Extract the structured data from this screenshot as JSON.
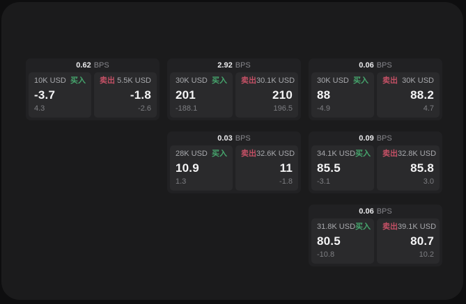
{
  "labels": {
    "bps_unit": "BPS",
    "buy": "买入",
    "sell": "卖出"
  },
  "colors": {
    "buy_green": "#46a56d",
    "sell_red": "#c35065",
    "panel_bg": "#1b1b1c",
    "card_bg": "#212123",
    "tile_bg": "#2a2a2c"
  },
  "cards": [
    {
      "bps": "0.62",
      "buy": {
        "amount": "10K USD",
        "value": "-3.7",
        "change": "4.3"
      },
      "sell": {
        "amount": "5.5K USD",
        "value": "-1.8",
        "change": "-2.6"
      }
    },
    {
      "bps": "2.92",
      "buy": {
        "amount": "30K USD",
        "value": "201",
        "change": "-188.1"
      },
      "sell": {
        "amount": "30.1K USD",
        "value": "210",
        "change": "196.5"
      }
    },
    {
      "bps": "0.06",
      "buy": {
        "amount": "30K USD",
        "value": "88",
        "change": "-4.9"
      },
      "sell": {
        "amount": "30K USD",
        "value": "88.2",
        "change": "4.7"
      }
    },
    {
      "bps": "0.03",
      "buy": {
        "amount": "28K USD",
        "value": "10.9",
        "change": "1.3"
      },
      "sell": {
        "amount": "32.6K USD",
        "value": "11",
        "change": "-1.8"
      }
    },
    {
      "bps": "0.09",
      "buy": {
        "amount": "34.1K USD",
        "value": "85.5",
        "change": "-3.1"
      },
      "sell": {
        "amount": "32.8K USD",
        "value": "85.8",
        "change": "3.0"
      }
    },
    {
      "bps": "0.06",
      "buy": {
        "amount": "31.8K USD",
        "value": "80.5",
        "change": "-10.8"
      },
      "sell": {
        "amount": "39.1K USD",
        "value": "80.7",
        "change": "10.2"
      }
    }
  ]
}
